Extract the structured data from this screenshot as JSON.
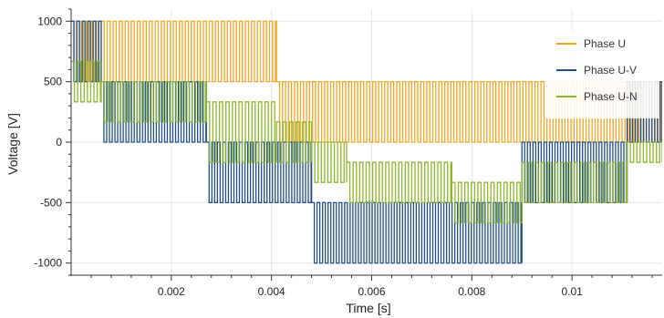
{
  "chart_data": {
    "type": "line",
    "title": "",
    "xlabel": "Time [s]",
    "ylabel": "Voltage [V]",
    "xlim": [
      0.0,
      0.0118
    ],
    "ylim": [
      -1100,
      1100
    ],
    "x_ticks": [
      0.002,
      0.004,
      0.006,
      0.008,
      0.01
    ],
    "x_tick_labels": [
      "0.002",
      "0.004",
      "0.006",
      "0.008",
      "0.01"
    ],
    "y_ticks": [
      1000,
      500,
      0,
      -500,
      -1000
    ],
    "y_tick_labels": [
      "1000",
      "500",
      "0",
      "-500",
      "-1000"
    ],
    "grid": true,
    "legend_position": "top-right",
    "series": [
      {
        "name": "Phase U",
        "color": "#F5A623",
        "pwm": [
          {
            "x0": 0.0,
            "x1": 0.0041,
            "low": 500,
            "high": 1000,
            "period": 0.00012,
            "duty": 0.5
          },
          {
            "x0": 0.0041,
            "x1": 0.0118,
            "low": 0,
            "high": 500,
            "period": 0.00012,
            "duty": 0.5
          }
        ]
      },
      {
        "name": "Phase U-V",
        "color": "#1F4E8C",
        "pwm": [
          {
            "x0": 0.0,
            "x1": 0.0006,
            "low": 500,
            "high": 1000,
            "period": 0.00011,
            "duty": 0.5
          },
          {
            "x0": 0.0006,
            "x1": 0.0027,
            "low": 0,
            "high": 500,
            "period": 0.00011,
            "duty": 0.5
          },
          {
            "x0": 0.0027,
            "x1": 0.0048,
            "low": -500,
            "high": 0,
            "period": 0.00011,
            "duty": 0.5
          },
          {
            "x0": 0.0048,
            "x1": 0.009,
            "low": -1000,
            "high": -500,
            "period": 0.00011,
            "duty": 0.5
          },
          {
            "x0": 0.009,
            "x1": 0.0111,
            "low": -500,
            "high": 0,
            "period": 0.00011,
            "duty": 0.5
          },
          {
            "x0": 0.0111,
            "x1": 0.0118,
            "low": 0,
            "high": 500,
            "period": 0.00011,
            "duty": 0.5
          }
        ]
      },
      {
        "name": "Phase U-N",
        "color": "#8DB72B",
        "pwm": [
          {
            "x0": 0.0,
            "x1": 0.0006,
            "low": 333,
            "high": 667,
            "period": 0.00013,
            "duty": 0.5
          },
          {
            "x0": 0.0006,
            "x1": 0.0027,
            "low": 167,
            "high": 500,
            "period": 0.00013,
            "duty": 0.5
          },
          {
            "x0": 0.0027,
            "x1": 0.0041,
            "low": -167,
            "high": 333,
            "period": 0.00013,
            "duty": 0.5
          },
          {
            "x0": 0.0041,
            "x1": 0.0048,
            "low": -167,
            "high": 167,
            "period": 0.00013,
            "duty": 0.5
          },
          {
            "x0": 0.0048,
            "x1": 0.0055,
            "low": -333,
            "high": 0,
            "period": 0.00013,
            "duty": 0.5
          },
          {
            "x0": 0.0055,
            "x1": 0.0076,
            "low": -500,
            "high": -167,
            "period": 0.00013,
            "duty": 0.5
          },
          {
            "x0": 0.0076,
            "x1": 0.009,
            "low": -667,
            "high": -333,
            "period": 0.00013,
            "duty": 0.5
          },
          {
            "x0": 0.009,
            "x1": 0.0111,
            "low": -500,
            "high": -167,
            "period": 0.00013,
            "duty": 0.5
          },
          {
            "x0": 0.0111,
            "x1": 0.0118,
            "low": -167,
            "high": 0,
            "period": 0.00013,
            "duty": 0.5
          }
        ]
      }
    ]
  }
}
